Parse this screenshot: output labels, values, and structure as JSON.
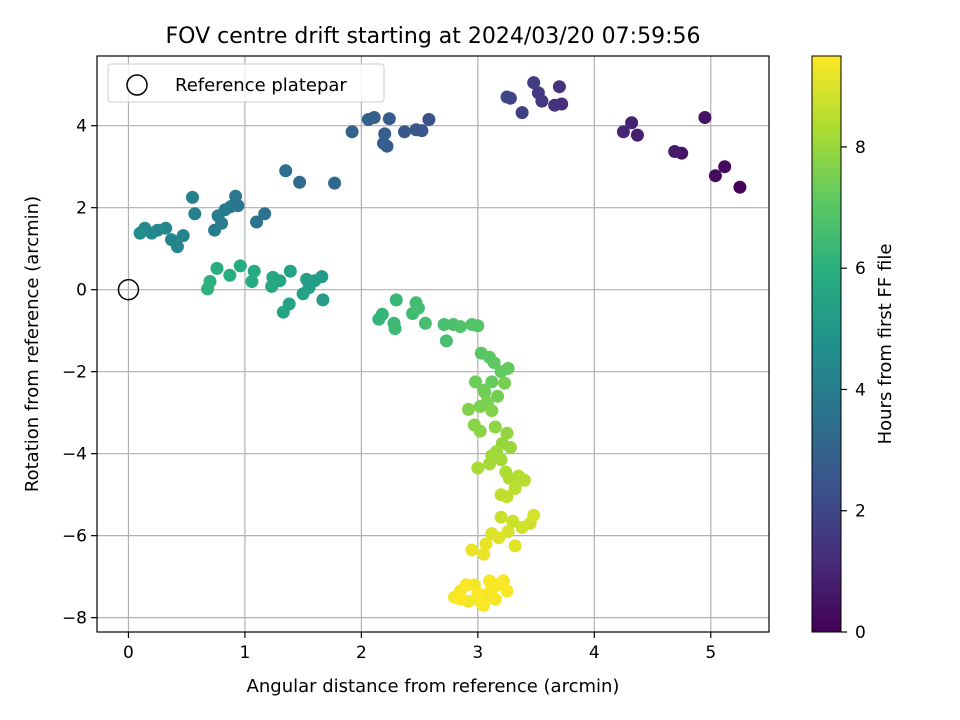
{
  "chart_data": {
    "type": "scatter",
    "title": "FOV centre drift starting at 2024/03/20 07:59:56",
    "xlabel": "Angular distance from reference (arcmin)",
    "ylabel": "Rotation from reference (arcmin)",
    "xlim": [
      -0.27,
      5.5
    ],
    "ylim": [
      -8.35,
      5.7
    ],
    "xticks": [
      0,
      1,
      2,
      3,
      4,
      5
    ],
    "yticks": [
      -8,
      -6,
      -4,
      -2,
      0,
      2,
      4
    ],
    "grid": true,
    "legend": {
      "location": "top-left",
      "entries": [
        "Reference platepar"
      ]
    },
    "reference_point": {
      "x": 0,
      "y": 0,
      "label": "Reference platepar"
    },
    "colorbar": {
      "label": "Hours from first FF file",
      "range": [
        0,
        9.5
      ],
      "ticks": [
        0,
        2,
        4,
        6,
        8
      ],
      "colormap": "viridis"
    },
    "points": [
      [
        5.25,
        2.5,
        0.1
      ],
      [
        5.12,
        3.0,
        0.2
      ],
      [
        5.04,
        2.78,
        0.3
      ],
      [
        4.95,
        4.2,
        0.45
      ],
      [
        4.75,
        3.33,
        0.55
      ],
      [
        4.69,
        3.37,
        0.65
      ],
      [
        4.37,
        3.77,
        0.8
      ],
      [
        4.32,
        4.07,
        0.9
      ],
      [
        4.25,
        3.85,
        1.0
      ],
      [
        3.72,
        4.53,
        1.2
      ],
      [
        3.66,
        4.5,
        1.3
      ],
      [
        3.7,
        4.95,
        1.35
      ],
      [
        3.55,
        4.6,
        1.5
      ],
      [
        3.52,
        4.8,
        1.6
      ],
      [
        3.48,
        5.05,
        1.7
      ],
      [
        3.38,
        4.32,
        1.8
      ],
      [
        3.28,
        4.67,
        1.9
      ],
      [
        3.25,
        4.7,
        2.0
      ],
      [
        2.58,
        4.15,
        2.4
      ],
      [
        2.52,
        3.88,
        2.5
      ],
      [
        2.47,
        3.9,
        2.55
      ],
      [
        2.37,
        3.85,
        2.6
      ],
      [
        2.24,
        4.17,
        2.7
      ],
      [
        2.22,
        3.5,
        2.75
      ],
      [
        2.19,
        3.57,
        2.8
      ],
      [
        2.2,
        3.8,
        2.85
      ],
      [
        2.11,
        4.2,
        2.9
      ],
      [
        2.06,
        4.15,
        2.95
      ],
      [
        1.92,
        3.85,
        3.0
      ],
      [
        1.77,
        2.6,
        3.2
      ],
      [
        1.47,
        2.62,
        3.3
      ],
      [
        1.35,
        2.9,
        3.4
      ],
      [
        1.17,
        1.85,
        3.55
      ],
      [
        1.1,
        1.65,
        3.6
      ],
      [
        0.94,
        2.05,
        3.7
      ],
      [
        0.92,
        2.28,
        3.75
      ],
      [
        0.88,
        2.03,
        3.8
      ],
      [
        0.83,
        1.95,
        3.85
      ],
      [
        0.8,
        1.62,
        3.9
      ],
      [
        0.77,
        1.8,
        3.95
      ],
      [
        0.74,
        1.45,
        4.0
      ],
      [
        0.57,
        1.85,
        4.1
      ],
      [
        0.55,
        2.25,
        4.15
      ],
      [
        0.47,
        1.32,
        4.2
      ],
      [
        0.42,
        1.05,
        4.25
      ],
      [
        0.37,
        1.22,
        4.3
      ],
      [
        0.32,
        1.5,
        4.35
      ],
      [
        0.25,
        1.45,
        4.4
      ],
      [
        0.2,
        1.38,
        4.45
      ],
      [
        0.14,
        1.5,
        4.5
      ],
      [
        0.1,
        1.38,
        4.55
      ],
      [
        1.66,
        0.32,
        5.15
      ],
      [
        1.67,
        -0.25,
        5.2
      ],
      [
        1.6,
        0.22,
        5.25
      ],
      [
        1.55,
        0.05,
        5.3
      ],
      [
        1.53,
        0.25,
        5.35
      ],
      [
        1.5,
        -0.1,
        5.4
      ],
      [
        1.39,
        0.45,
        5.45
      ],
      [
        1.38,
        -0.35,
        5.5
      ],
      [
        1.33,
        -0.55,
        5.55
      ],
      [
        1.3,
        0.22,
        5.6
      ],
      [
        1.24,
        0.3,
        5.65
      ],
      [
        1.23,
        0.08,
        5.7
      ],
      [
        1.08,
        0.45,
        5.75
      ],
      [
        1.06,
        0.2,
        5.8
      ],
      [
        0.96,
        0.58,
        5.85
      ],
      [
        0.87,
        0.35,
        5.9
      ],
      [
        0.76,
        0.52,
        5.95
      ],
      [
        0.7,
        0.2,
        6.0
      ],
      [
        0.68,
        0.02,
        6.05
      ],
      [
        2.18,
        -0.6,
        6.2
      ],
      [
        2.15,
        -0.72,
        6.25
      ],
      [
        2.3,
        -0.25,
        6.3
      ],
      [
        2.28,
        -0.82,
        6.35
      ],
      [
        2.29,
        -0.95,
        6.4
      ],
      [
        2.44,
        -0.58,
        6.45
      ],
      [
        2.47,
        -0.32,
        6.5
      ],
      [
        2.49,
        -0.45,
        6.55
      ],
      [
        2.55,
        -0.82,
        6.6
      ],
      [
        2.71,
        -0.85,
        6.65
      ],
      [
        2.73,
        -1.25,
        6.7
      ],
      [
        2.79,
        -0.85,
        6.75
      ],
      [
        2.85,
        -0.9,
        6.8
      ],
      [
        2.95,
        -0.85,
        6.85
      ],
      [
        3.0,
        -0.88,
        6.9
      ],
      [
        3.03,
        -1.55,
        7.0
      ],
      [
        3.1,
        -1.65,
        7.05
      ],
      [
        3.14,
        -1.78,
        7.1
      ],
      [
        3.2,
        -2.0,
        7.15
      ],
      [
        3.26,
        -1.92,
        7.2
      ],
      [
        3.12,
        -2.25,
        7.25
      ],
      [
        3.05,
        -2.45,
        7.3
      ],
      [
        2.98,
        -2.25,
        7.35
      ],
      [
        3.06,
        -2.5,
        7.4
      ],
      [
        3.17,
        -2.6,
        7.45
      ],
      [
        3.23,
        -2.28,
        7.5
      ],
      [
        3.08,
        -2.75,
        7.55
      ],
      [
        3.02,
        -2.85,
        7.6
      ],
      [
        2.92,
        -2.92,
        7.65
      ],
      [
        3.12,
        -2.95,
        7.7
      ],
      [
        2.97,
        -3.3,
        7.75
      ],
      [
        3.02,
        -3.45,
        7.8
      ],
      [
        3.15,
        -3.35,
        7.85
      ],
      [
        3.25,
        -3.5,
        7.9
      ],
      [
        3.21,
        -3.75,
        7.95
      ],
      [
        3.28,
        -3.85,
        8.0
      ],
      [
        3.16,
        -3.95,
        8.05
      ],
      [
        3.12,
        -4.05,
        8.1
      ],
      [
        3.2,
        -4.15,
        8.15
      ],
      [
        3.1,
        -4.25,
        8.2
      ],
      [
        3.0,
        -4.35,
        8.25
      ],
      [
        3.24,
        -4.45,
        8.3
      ],
      [
        3.27,
        -4.6,
        8.35
      ],
      [
        3.35,
        -4.55,
        8.4
      ],
      [
        3.4,
        -4.65,
        8.45
      ],
      [
        3.32,
        -4.85,
        8.5
      ],
      [
        3.2,
        -5.0,
        8.55
      ],
      [
        3.25,
        -5.05,
        8.6
      ],
      [
        3.2,
        -5.55,
        8.7
      ],
      [
        3.3,
        -5.65,
        8.75
      ],
      [
        3.38,
        -5.8,
        8.8
      ],
      [
        3.45,
        -5.7,
        8.85
      ],
      [
        3.48,
        -5.5,
        8.9
      ],
      [
        3.26,
        -5.9,
        8.95
      ],
      [
        3.12,
        -5.95,
        9.0
      ],
      [
        3.18,
        -6.05,
        9.05
      ],
      [
        3.32,
        -6.25,
        9.1
      ],
      [
        3.07,
        -6.2,
        9.15
      ],
      [
        2.95,
        -6.35,
        9.2
      ],
      [
        3.05,
        -6.45,
        9.25
      ],
      [
        2.97,
        -7.2,
        9.3
      ],
      [
        3.07,
        -7.45,
        9.3
      ],
      [
        2.92,
        -7.6,
        9.35
      ],
      [
        2.85,
        -7.35,
        9.35
      ],
      [
        3.02,
        -7.6,
        9.35
      ],
      [
        3.12,
        -7.3,
        9.4
      ],
      [
        3.15,
        -7.55,
        9.4
      ],
      [
        2.8,
        -7.5,
        9.4
      ],
      [
        3.22,
        -7.1,
        9.4
      ],
      [
        3.25,
        -7.35,
        9.45
      ],
      [
        3.17,
        -7.2,
        9.45
      ],
      [
        2.9,
        -7.2,
        9.45
      ],
      [
        3.05,
        -7.7,
        9.45
      ],
      [
        3.1,
        -7.1,
        9.45
      ],
      [
        2.85,
        -7.55,
        9.5
      ],
      [
        3.0,
        -7.4,
        9.5
      ]
    ]
  }
}
